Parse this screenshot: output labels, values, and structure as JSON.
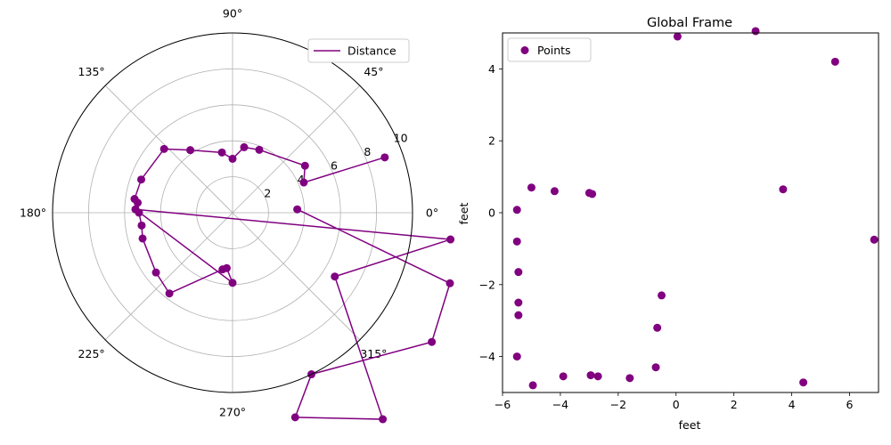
{
  "chart_data": [
    {
      "type": "line",
      "subtype": "polar",
      "title": "",
      "theta_tick_labels": [
        "0°",
        "45°",
        "90°",
        "135°",
        "180°",
        "225°",
        "270°",
        "315°"
      ],
      "r_tick_labels": [
        "2",
        "4",
        "6",
        "8",
        "10"
      ],
      "rlim": [
        0,
        10
      ],
      "grid": true,
      "legend": {
        "position": "top-right",
        "entries": [
          "Distance"
        ]
      },
      "series": [
        {
          "name": "Distance",
          "color": "#800080",
          "marker": "circle",
          "points": [
            {
              "theta_deg": 3,
              "r": 3.6
            },
            {
              "theta_deg": 342,
              "r": 12.7
            },
            {
              "theta_deg": 327,
              "r": 13.2
            },
            {
              "theta_deg": 296,
              "r": 10.0
            },
            {
              "theta_deg": 287,
              "r": 11.9
            },
            {
              "theta_deg": 306,
              "r": 14.2
            },
            {
              "theta_deg": 328,
              "r": 6.7
            },
            {
              "theta_deg": 353,
              "r": 12.2
            },
            {
              "theta_deg": 178,
              "r": 5.4
            },
            {
              "theta_deg": 270,
              "r": 3.9
            },
            {
              "theta_deg": 264,
              "r": 3.1
            },
            {
              "theta_deg": 260,
              "r": 3.2
            },
            {
              "theta_deg": 232,
              "r": 5.7
            },
            {
              "theta_deg": 218,
              "r": 5.4
            },
            {
              "theta_deg": 196,
              "r": 5.2
            },
            {
              "theta_deg": 188,
              "r": 5.1
            },
            {
              "theta_deg": 180,
              "r": 5.2
            },
            {
              "theta_deg": 174,
              "r": 5.3
            },
            {
              "theta_deg": 172,
              "r": 5.5
            },
            {
              "theta_deg": 160,
              "r": 5.4
            },
            {
              "theta_deg": 137,
              "r": 5.2
            },
            {
              "theta_deg": 124,
              "r": 4.2
            },
            {
              "theta_deg": 100,
              "r": 3.4
            },
            {
              "theta_deg": 90,
              "r": 3.0
            },
            {
              "theta_deg": 80,
              "r": 3.7
            },
            {
              "theta_deg": 67,
              "r": 3.8
            },
            {
              "theta_deg": 33,
              "r": 4.8
            },
            {
              "theta_deg": 23,
              "r": 4.3
            },
            {
              "theta_deg": 20,
              "r": 9.0
            }
          ]
        }
      ]
    },
    {
      "type": "scatter",
      "title": "Global Frame",
      "xlabel": "feet",
      "ylabel": "feet",
      "xlim": [
        -6,
        7
      ],
      "ylim": [
        -5,
        5
      ],
      "x_tick_labels": [
        "−6",
        "−4",
        "−2",
        "0",
        "2",
        "4",
        "6"
      ],
      "y_tick_labels": [
        "−4",
        "−2",
        "0",
        "2",
        "4"
      ],
      "grid": false,
      "legend": {
        "position": "top-left",
        "entries": [
          "Points"
        ]
      },
      "series": [
        {
          "name": "Points",
          "color": "#800080",
          "points": [
            [
              0.05,
              4.9
            ],
            [
              2.75,
              5.05
            ],
            [
              5.5,
              4.2
            ],
            [
              -5.0,
              0.7
            ],
            [
              -4.2,
              0.6
            ],
            [
              -3.0,
              0.55
            ],
            [
              -2.9,
              0.52
            ],
            [
              3.7,
              0.65
            ],
            [
              -5.5,
              0.08
            ],
            [
              -5.5,
              -0.8
            ],
            [
              6.85,
              -0.75
            ],
            [
              -5.45,
              -1.65
            ],
            [
              -0.5,
              -2.3
            ],
            [
              -5.45,
              -2.5
            ],
            [
              -5.45,
              -2.85
            ],
            [
              -0.65,
              -3.2
            ],
            [
              -5.5,
              -4.0
            ],
            [
              -0.7,
              -4.3
            ],
            [
              -3.9,
              -4.55
            ],
            [
              -2.95,
              -4.52
            ],
            [
              -2.7,
              -4.55
            ],
            [
              -1.6,
              -4.6
            ],
            [
              4.4,
              -4.72
            ],
            [
              -4.95,
              -4.8
            ]
          ]
        }
      ]
    }
  ]
}
